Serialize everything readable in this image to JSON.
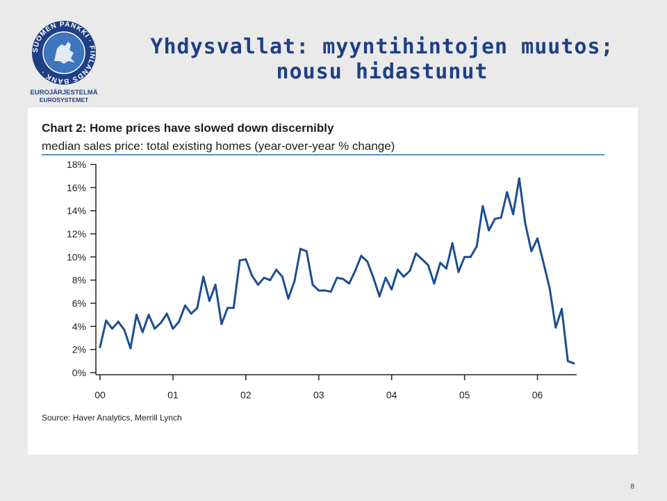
{
  "slide": {
    "title_line1": "Yhdysvallat: myyntihintojen muutos;",
    "title_line2": "nousu hidastunut",
    "page_number": "8"
  },
  "logo": {
    "ring_text": "SUOMEN PANKKI · FINLANDS BANK ·",
    "line1": "EUROJÄRJESTELMÄ",
    "line2": "EUROSYSTEMET"
  },
  "colors": {
    "title": "#1f3f86",
    "series": "#1d4e8f",
    "accent_rule": "#5c8fc4"
  },
  "chart_data": {
    "type": "line",
    "title": "Chart 2: Home prices have slowed down discernibly",
    "subtitle": "median sales price: total existing homes (year-over-year % change)",
    "source": "Source: Haver Analytics, Merrill Lynch",
    "x_tick_labels": [
      "00",
      "01",
      "02",
      "03",
      "04",
      "05",
      "06"
    ],
    "y_tick_labels": [
      "0%",
      "2%",
      "4%",
      "6%",
      "8%",
      "10%",
      "12%",
      "14%",
      "16%",
      "18%"
    ],
    "ylim": [
      0,
      18
    ],
    "xlim": [
      2000.0,
      2006.5
    ],
    "grid": false,
    "series": [
      {
        "x": [
          2000.0,
          2000.083,
          2000.167,
          2000.25,
          2000.333,
          2000.417,
          2000.5,
          2000.583,
          2000.667,
          2000.75,
          2000.833,
          2000.917,
          2001.0,
          2001.083,
          2001.167,
          2001.25,
          2001.333,
          2001.417,
          2001.5,
          2001.583,
          2001.667,
          2001.75,
          2001.833,
          2001.917,
          2002.0,
          2002.083,
          2002.167,
          2002.25,
          2002.333,
          2002.417,
          2002.5,
          2002.583,
          2002.667,
          2002.75,
          2002.833,
          2002.917,
          2003.0,
          2003.083,
          2003.167,
          2003.25,
          2003.333,
          2003.417,
          2003.5,
          2003.583,
          2003.667,
          2003.75,
          2003.833,
          2003.917,
          2004.0,
          2004.083,
          2004.167,
          2004.25,
          2004.333,
          2004.417,
          2004.5,
          2004.583,
          2004.667,
          2004.75,
          2004.833,
          2004.917,
          2005.0,
          2005.083,
          2005.167,
          2005.25,
          2005.333,
          2005.417,
          2005.5,
          2005.583,
          2005.667,
          2005.75,
          2005.833,
          2005.917,
          2006.0,
          2006.083,
          2006.167,
          2006.25,
          2006.333,
          2006.417,
          2006.5
        ],
        "values": [
          2.2,
          4.5,
          3.8,
          4.4,
          3.7,
          2.1,
          5.0,
          3.5,
          5.0,
          3.8,
          4.3,
          5.1,
          3.8,
          4.4,
          5.8,
          5.1,
          5.6,
          8.3,
          6.2,
          7.6,
          4.2,
          5.6,
          5.6,
          9.7,
          9.8,
          8.4,
          7.6,
          8.2,
          8.0,
          8.9,
          8.3,
          6.4,
          7.9,
          10.7,
          10.5,
          7.6,
          7.1,
          7.1,
          7.0,
          8.2,
          8.1,
          7.7,
          8.8,
          10.1,
          9.6,
          8.2,
          6.6,
          8.2,
          7.2,
          8.9,
          8.3,
          8.8,
          10.3,
          9.8,
          9.3,
          7.7,
          9.5,
          9.0,
          11.2,
          8.7,
          10.0,
          10.0,
          10.9,
          14.4,
          12.3,
          13.3,
          13.4,
          15.6,
          13.7,
          16.8,
          12.9,
          10.5,
          11.6,
          9.5,
          7.3,
          3.9,
          5.5,
          1.0,
          0.8
        ]
      }
    ]
  }
}
